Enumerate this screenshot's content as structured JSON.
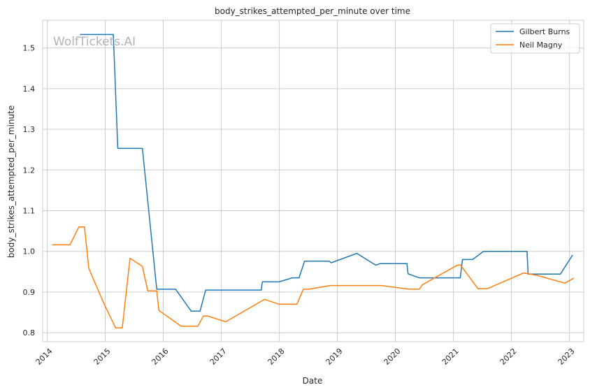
{
  "chart_data": {
    "type": "line",
    "title": "body_strikes_attempted_per_minute over time",
    "xlabel": "Date",
    "ylabel": "body_strikes_attempted_per_minute",
    "watermark": "WolfTickets.AI",
    "xlim": [
      "2013-12-03",
      "2023-04-01"
    ],
    "ylim": [
      0.778,
      1.568
    ],
    "x_ticks": [
      "2014",
      "2015",
      "2016",
      "2017",
      "2018",
      "2019",
      "2020",
      "2021",
      "2022",
      "2023"
    ],
    "y_ticks": [
      "0.8",
      "0.9",
      "1.0",
      "1.1",
      "1.2",
      "1.3",
      "1.4",
      "1.5"
    ],
    "grid": true,
    "legend_position": "top-right",
    "series": [
      {
        "name": "Gilbert Burns",
        "color": "#1f77b4",
        "points": [
          [
            "2014-07-26",
            1.533
          ],
          [
            "2015-02-21",
            1.533
          ],
          [
            "2015-03-21",
            1.253
          ],
          [
            "2015-08-23",
            1.253
          ],
          [
            "2015-11-21",
            0.907
          ],
          [
            "2016-03-19",
            0.907
          ],
          [
            "2016-06-25",
            0.853
          ],
          [
            "2016-08-20",
            0.853
          ],
          [
            "2016-09-24",
            0.905
          ],
          [
            "2017-09-09",
            0.905
          ],
          [
            "2017-09-16",
            0.925
          ],
          [
            "2017-12-30",
            0.925
          ],
          [
            "2018-03-24",
            0.935
          ],
          [
            "2018-05-05",
            0.935
          ],
          [
            "2018-06-09",
            0.976
          ],
          [
            "2018-11-10",
            0.976
          ],
          [
            "2018-11-24",
            0.972
          ],
          [
            "2019-05-04",
            0.995
          ],
          [
            "2019-08-31",
            0.966
          ],
          [
            "2019-09-28",
            0.97
          ],
          [
            "2020-03-14",
            0.97
          ],
          [
            "2020-03-21",
            0.945
          ],
          [
            "2020-05-30",
            0.935
          ],
          [
            "2021-02-13",
            0.935
          ],
          [
            "2021-02-27",
            0.98
          ],
          [
            "2021-05-01",
            0.98
          ],
          [
            "2021-07-10",
            1.0
          ],
          [
            "2022-04-09",
            1.0
          ],
          [
            "2022-04-16",
            0.944
          ],
          [
            "2022-11-05",
            0.944
          ],
          [
            "2023-01-21",
            0.991
          ]
        ]
      },
      {
        "name": "Neil Magny",
        "color": "#ff7f0e",
        "points": [
          [
            "2014-02-01",
            1.016
          ],
          [
            "2014-05-24",
            1.016
          ],
          [
            "2014-07-19",
            1.06
          ],
          [
            "2014-08-23",
            1.06
          ],
          [
            "2014-09-20",
            0.958
          ],
          [
            "2014-12-20",
            0.875
          ],
          [
            "2015-03-07",
            0.812
          ],
          [
            "2015-04-18",
            0.812
          ],
          [
            "2015-06-06",
            0.983
          ],
          [
            "2015-08-23",
            0.963
          ],
          [
            "2015-09-26",
            0.903
          ],
          [
            "2015-11-21",
            0.903
          ],
          [
            "2015-12-05",
            0.855
          ],
          [
            "2016-04-23",
            0.816
          ],
          [
            "2016-08-06",
            0.816
          ],
          [
            "2016-09-10",
            0.841
          ],
          [
            "2016-10-08",
            0.841
          ],
          [
            "2017-01-28",
            0.827
          ],
          [
            "2017-09-30",
            0.882
          ],
          [
            "2017-12-30",
            0.87
          ],
          [
            "2018-04-21",
            0.87
          ],
          [
            "2018-06-01",
            0.907
          ],
          [
            "2018-07-07",
            0.907
          ],
          [
            "2018-11-17",
            0.916
          ],
          [
            "2019-10-05",
            0.916
          ],
          [
            "2020-03-28",
            0.907
          ],
          [
            "2020-05-30",
            0.907
          ],
          [
            "2020-06-20",
            0.918
          ],
          [
            "2021-01-20",
            0.965
          ],
          [
            "2021-02-13",
            0.967
          ],
          [
            "2021-06-05",
            0.908
          ],
          [
            "2021-08-01",
            0.908
          ],
          [
            "2022-03-19",
            0.947
          ],
          [
            "2022-06-11",
            0.941
          ],
          [
            "2022-12-03",
            0.922
          ],
          [
            "2023-01-28",
            0.934
          ]
        ]
      }
    ]
  }
}
